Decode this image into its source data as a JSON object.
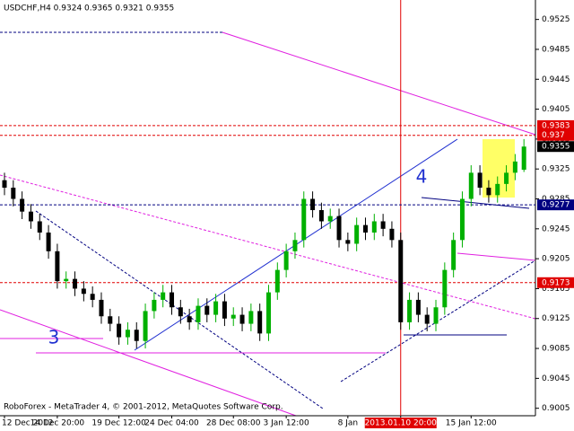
{
  "chart_data": {
    "type": "candlestick",
    "title": "USDCHF,H4  0.9324 0.9365 0.9321 0.9355",
    "footer": "RoboForex - MetaTrader 4, © 2001-2012, MetaQuotes Software Corp.",
    "annotations": [
      "3",
      "4"
    ],
    "categories": [
      "12 Dec 2012",
      null,
      null,
      null,
      null,
      null,
      "14 Dec 20:00",
      null,
      null,
      null,
      null,
      null,
      null,
      "19 Dec 12:00",
      null,
      null,
      null,
      null,
      null,
      "24 Dec 04:00",
      null,
      null,
      null,
      null,
      null,
      null,
      "28 Dec 08:00",
      null,
      null,
      null,
      null,
      null,
      "3 Jan 12:00",
      null,
      null,
      null,
      null,
      null,
      null,
      "8 Jan",
      null,
      null,
      null,
      null,
      null,
      "2013.01.10 20:00",
      null,
      null,
      null,
      null,
      null,
      null,
      null,
      "15 Jan 12:00",
      null,
      null,
      null,
      null,
      null,
      null
    ],
    "crosshair_index": 45,
    "open": [
      0.931,
      0.93,
      0.9285,
      0.9268,
      0.9255,
      0.924,
      0.9215,
      0.9175,
      0.9178,
      0.9165,
      0.9158,
      0.915,
      0.9128,
      0.9118,
      0.91,
      0.911,
      0.9095,
      0.9135,
      0.915,
      0.916,
      0.914,
      0.9128,
      0.912,
      0.9142,
      0.913,
      0.9148,
      0.9125,
      0.913,
      0.9118,
      0.9135,
      0.9105,
      0.916,
      0.919,
      0.9215,
      0.923,
      0.9285,
      0.927,
      0.9255,
      0.9262,
      0.923,
      0.9225,
      0.925,
      0.924,
      0.9255,
      0.9245,
      0.923,
      0.912,
      0.915,
      0.913,
      0.9118,
      0.914,
      0.919,
      0.923,
      0.9285,
      0.932,
      0.93,
      0.929,
      0.9305,
      0.932,
      0.9324
    ],
    "high": [
      0.932,
      0.931,
      0.9295,
      0.9278,
      0.9265,
      0.925,
      0.9225,
      0.9188,
      0.9188,
      0.9175,
      0.9168,
      0.916,
      0.9138,
      0.9128,
      0.912,
      0.912,
      0.9145,
      0.916,
      0.917,
      0.917,
      0.915,
      0.9138,
      0.9152,
      0.9152,
      0.9158,
      0.9158,
      0.914,
      0.914,
      0.9145,
      0.9145,
      0.917,
      0.92,
      0.9225,
      0.924,
      0.9295,
      0.9295,
      0.928,
      0.9272,
      0.9272,
      0.924,
      0.926,
      0.926,
      0.9265,
      0.9265,
      0.9255,
      0.924,
      0.916,
      0.916,
      0.914,
      0.915,
      0.92,
      0.924,
      0.9295,
      0.933,
      0.933,
      0.931,
      0.9315,
      0.933,
      0.9345,
      0.9365
    ],
    "low": [
      0.929,
      0.9275,
      0.9258,
      0.9245,
      0.923,
      0.9205,
      0.9165,
      0.9165,
      0.9155,
      0.9148,
      0.914,
      0.9118,
      0.9108,
      0.909,
      0.909,
      0.9085,
      0.9085,
      0.9125,
      0.914,
      0.913,
      0.9118,
      0.911,
      0.911,
      0.912,
      0.912,
      0.9115,
      0.9115,
      0.9108,
      0.9108,
      0.9095,
      0.9095,
      0.915,
      0.918,
      0.9205,
      0.922,
      0.926,
      0.9245,
      0.9245,
      0.922,
      0.9215,
      0.9215,
      0.923,
      0.923,
      0.9235,
      0.922,
      0.911,
      0.911,
      0.912,
      0.9108,
      0.9108,
      0.913,
      0.918,
      0.922,
      0.9275,
      0.929,
      0.928,
      0.928,
      0.9295,
      0.931,
      0.9321
    ],
    "close": [
      0.93,
      0.9285,
      0.9268,
      0.9255,
      0.924,
      0.9215,
      0.9175,
      0.9178,
      0.9165,
      0.9158,
      0.915,
      0.9128,
      0.9118,
      0.91,
      0.911,
      0.9095,
      0.9135,
      0.915,
      0.916,
      0.914,
      0.9128,
      0.912,
      0.9142,
      0.913,
      0.9148,
      0.9125,
      0.913,
      0.9118,
      0.9135,
      0.9105,
      0.916,
      0.919,
      0.9215,
      0.923,
      0.9285,
      0.927,
      0.9255,
      0.9262,
      0.923,
      0.9225,
      0.925,
      0.924,
      0.9255,
      0.9245,
      0.923,
      0.912,
      0.915,
      0.913,
      0.9118,
      0.914,
      0.919,
      0.923,
      0.9285,
      0.932,
      0.93,
      0.929,
      0.9305,
      0.932,
      0.9335,
      0.9355
    ],
    "up_color": "#00b000",
    "down_color": "#000000",
    "ylim": [
      0.8995,
      0.9551
    ],
    "yticks": [
      0.9525,
      0.9485,
      0.9445,
      0.9405,
      0.9365,
      0.9325,
      0.9285,
      0.9245,
      0.9205,
      0.9165,
      0.9125,
      0.9085,
      0.9045,
      0.9005
    ],
    "levels": [
      {
        "value": 0.9383,
        "color": "#e00000"
      },
      {
        "value": 0.937,
        "color": "#e00000"
      },
      {
        "value": 0.9355,
        "color": "#000000"
      },
      {
        "value": 0.9277,
        "color": "#000080"
      },
      {
        "value": 0.9173,
        "color": "#e00000"
      }
    ]
  }
}
